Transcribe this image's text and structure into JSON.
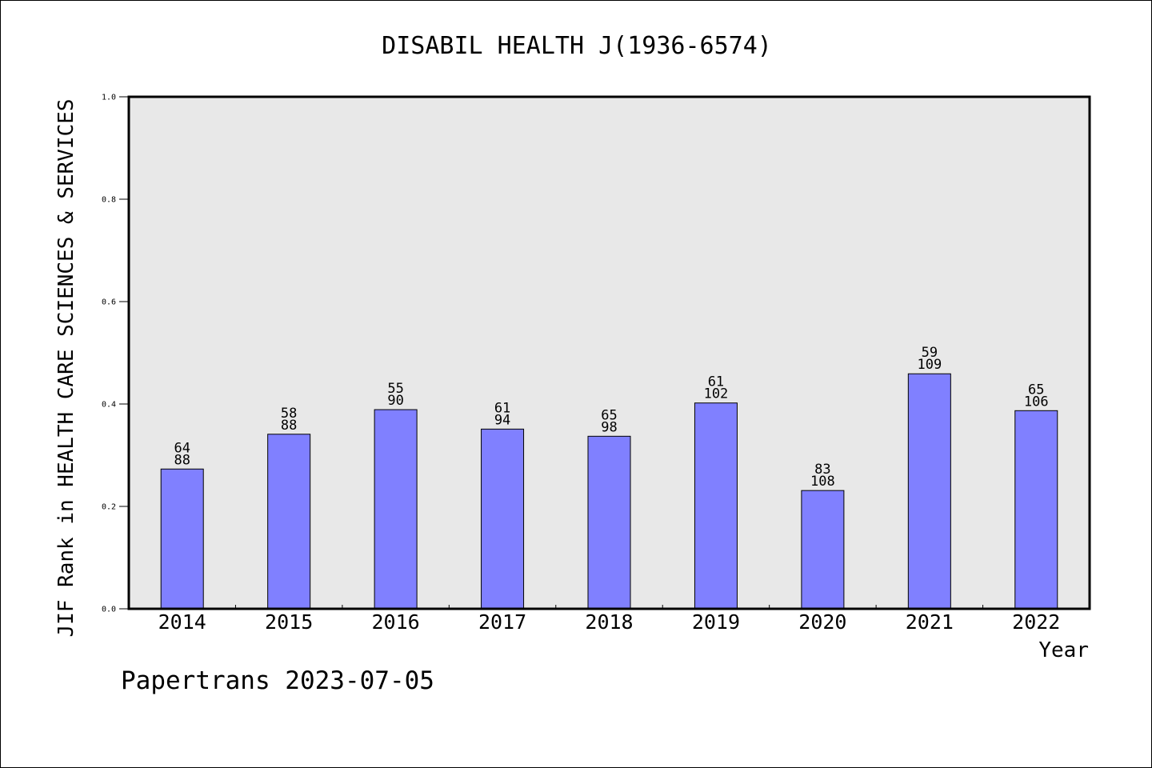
{
  "chart_data": {
    "type": "bar",
    "title": "DISABIL HEALTH J(1936-6574)",
    "xlabel": "Year",
    "ylabel": "JIF Rank in HEALTH CARE SCIENCES & SERVICES",
    "ylim": [
      0,
      1.0
    ],
    "yticks": [
      "0.0",
      "0.2",
      "0.4",
      "0.6",
      "0.8",
      "1.0"
    ],
    "ytick_values": [
      0,
      0.2,
      0.4,
      0.6,
      0.8,
      1.0
    ],
    "grid": false,
    "categories": [
      "2014",
      "2015",
      "2016",
      "2017",
      "2018",
      "2019",
      "2020",
      "2021",
      "2022"
    ],
    "values": [
      0.273,
      0.341,
      0.389,
      0.351,
      0.337,
      0.402,
      0.231,
      0.459,
      0.387
    ],
    "labels": [
      {
        "rank": "64",
        "total": "88"
      },
      {
        "rank": "58",
        "total": "88"
      },
      {
        "rank": "55",
        "total": "90"
      },
      {
        "rank": "61",
        "total": "94"
      },
      {
        "rank": "65",
        "total": "98"
      },
      {
        "rank": "61",
        "total": "102"
      },
      {
        "rank": "83",
        "total": "108"
      },
      {
        "rank": "59",
        "total": "109"
      },
      {
        "rank": "65",
        "total": "106"
      }
    ],
    "colors": {
      "bar": "#8080ff",
      "plot_background": "#e8e8e8",
      "axis": "#000000"
    }
  },
  "footer": "Papertrans 2023-07-05"
}
